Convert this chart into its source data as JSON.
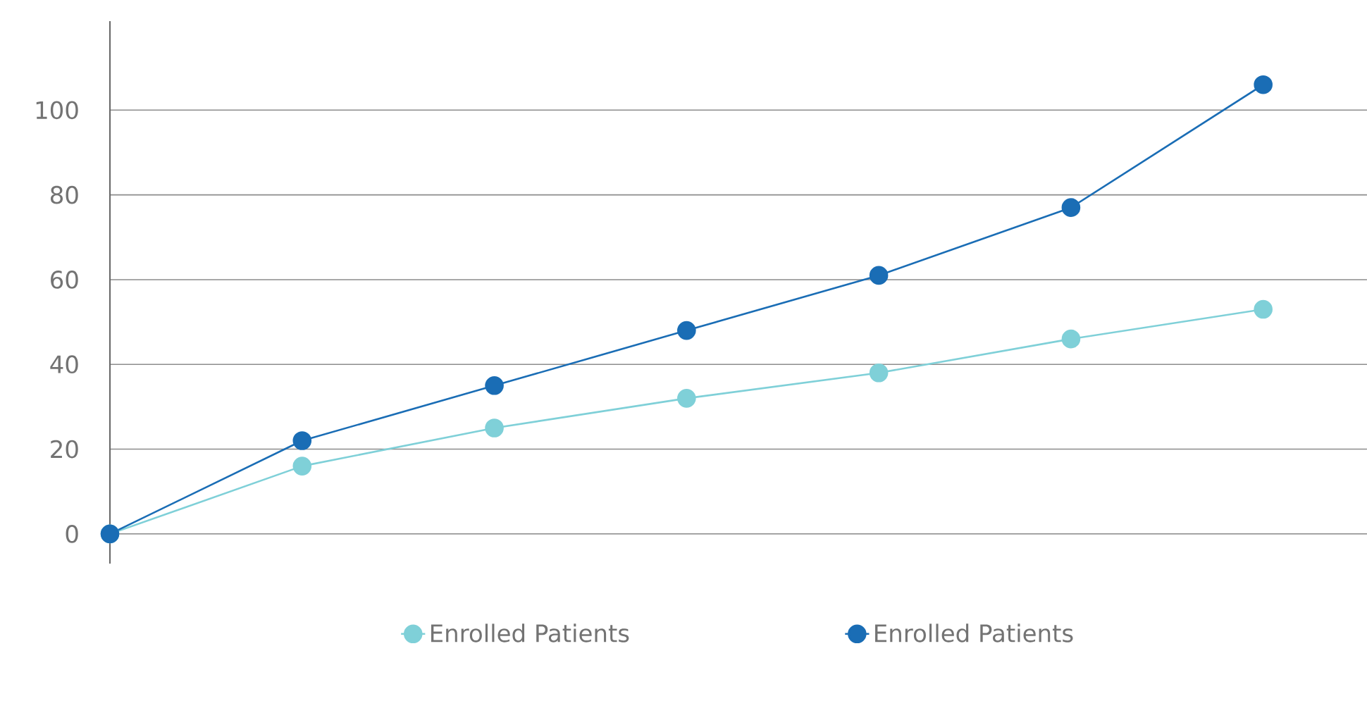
{
  "chart_data": {
    "type": "line",
    "categories": [
      null,
      null,
      null,
      null,
      null,
      null,
      null
    ],
    "series": [
      {
        "name": "Enrolled Patients",
        "color": "#7fd0d8",
        "values": [
          0,
          16,
          25,
          32,
          38,
          46,
          53
        ]
      },
      {
        "name": "Enrolled Patients",
        "color": "#1a6db5",
        "values": [
          0,
          22,
          35,
          48,
          61,
          77,
          106
        ]
      }
    ],
    "ylim": [
      -7,
      121
    ],
    "yticks": [
      0,
      20,
      40,
      60,
      80,
      100
    ],
    "grid": "y",
    "legend": "bottom",
    "marker": "circle",
    "line_style": "solid"
  }
}
